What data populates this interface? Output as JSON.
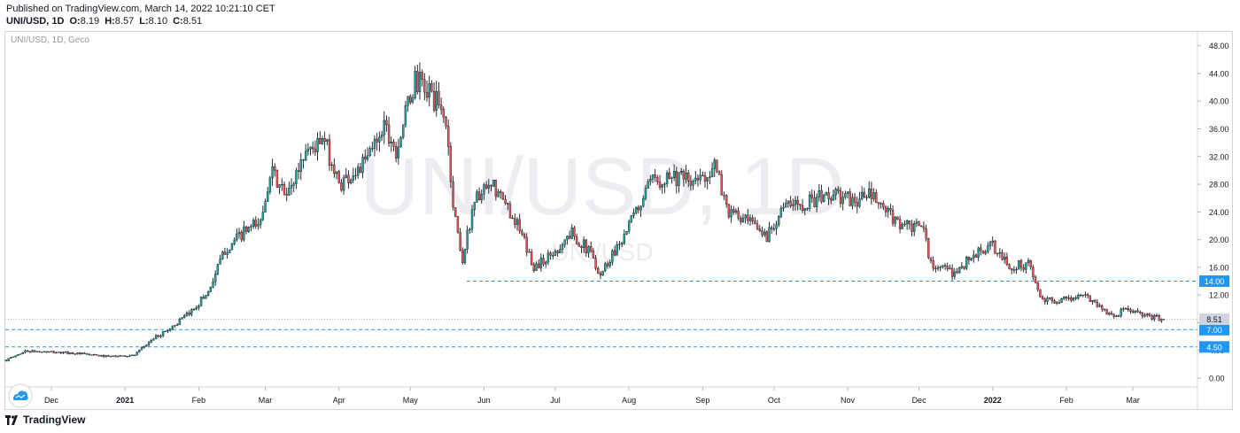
{
  "header": {
    "published": "Published on TradingView.com, March 14, 2022 10:21:10 CET",
    "symbol": "UNI/USD, 1D",
    "o_label": "O:",
    "o_value": "8.19",
    "h_label": "H:",
    "h_value": "8.57",
    "l_label": "L:",
    "l_value": "8.10",
    "c_label": "C:",
    "c_value": "8.51"
  },
  "pane_label": "UNI/USD, 1D, Geco",
  "watermark": {
    "main": "UNI/USD, 1D",
    "sub": "UNI/USD"
  },
  "footer": {
    "brand": "TradingView",
    "logo_icon": "tradingview-logo-icon"
  },
  "colors": {
    "up": "#26a69a",
    "down": "#ef5350",
    "candle": "#131722",
    "hline": "#2196f3",
    "badge": "#2196f3",
    "last_badge": "#d1d4dc"
  },
  "chart_data": {
    "type": "candlestick",
    "title": "UNI/USD, 1D",
    "xlabel": "",
    "ylabel": "",
    "ylim": [
      -1.5,
      50
    ],
    "y_ticks": [
      "0.00",
      "4.00",
      "8.00",
      "12.00",
      "16.00",
      "20.00",
      "24.00",
      "28.00",
      "32.00",
      "36.00",
      "40.00",
      "44.00",
      "48.00"
    ],
    "x_ticks": [
      "Dec",
      "2021",
      "Feb",
      "Mar",
      "Apr",
      "May",
      "Jun",
      "Jul",
      "Aug",
      "Sep",
      "Oct",
      "Nov",
      "Dec",
      "2022",
      "Feb",
      "Mar"
    ],
    "x_ticks_bold": [
      "2021",
      "2022"
    ],
    "price_path": [
      {
        "date": "2020-11-12",
        "close": 2.6
      },
      {
        "date": "2020-11-20",
        "close": 3.9
      },
      {
        "date": "2020-12-10",
        "close": 3.6
      },
      {
        "date": "2020-12-25",
        "close": 3.1
      },
      {
        "date": "2021-01-05",
        "close": 3.3
      },
      {
        "date": "2021-01-12",
        "close": 5.5
      },
      {
        "date": "2021-01-20",
        "close": 7.2
      },
      {
        "date": "2021-01-28",
        "close": 9.3
      },
      {
        "date": "2021-02-05",
        "close": 12.5
      },
      {
        "date": "2021-02-12",
        "close": 18.5
      },
      {
        "date": "2021-02-20",
        "close": 21.0
      },
      {
        "date": "2021-02-27",
        "close": 22.5
      },
      {
        "date": "2021-03-03",
        "close": 30.0
      },
      {
        "date": "2021-03-10",
        "close": 26.0
      },
      {
        "date": "2021-03-18",
        "close": 33.0
      },
      {
        "date": "2021-03-26",
        "close": 34.0
      },
      {
        "date": "2021-04-01",
        "close": 28.0
      },
      {
        "date": "2021-04-12",
        "close": 31.0
      },
      {
        "date": "2021-04-20",
        "close": 37.0
      },
      {
        "date": "2021-04-25",
        "close": 33.0
      },
      {
        "date": "2021-05-03",
        "close": 43.0
      },
      {
        "date": "2021-05-10",
        "close": 41.0
      },
      {
        "date": "2021-05-16",
        "close": 37.0
      },
      {
        "date": "2021-05-19",
        "close": 25.0
      },
      {
        "date": "2021-05-23",
        "close": 17.0
      },
      {
        "date": "2021-05-28",
        "close": 26.0
      },
      {
        "date": "2021-06-05",
        "close": 27.5
      },
      {
        "date": "2021-06-14",
        "close": 23.0
      },
      {
        "date": "2021-06-22",
        "close": 16.0
      },
      {
        "date": "2021-06-30",
        "close": 18.0
      },
      {
        "date": "2021-07-08",
        "close": 21.0
      },
      {
        "date": "2021-07-16",
        "close": 18.0
      },
      {
        "date": "2021-07-20",
        "close": 15.0
      },
      {
        "date": "2021-08-01",
        "close": 22.0
      },
      {
        "date": "2021-08-10",
        "close": 28.0
      },
      {
        "date": "2021-08-18",
        "close": 29.5
      },
      {
        "date": "2021-08-28",
        "close": 28.0
      },
      {
        "date": "2021-09-06",
        "close": 30.5
      },
      {
        "date": "2021-09-12",
        "close": 24.0
      },
      {
        "date": "2021-09-22",
        "close": 22.0
      },
      {
        "date": "2021-09-28",
        "close": 20.5
      },
      {
        "date": "2021-10-04",
        "close": 24.5
      },
      {
        "date": "2021-10-15",
        "close": 25.5
      },
      {
        "date": "2021-10-25",
        "close": 26.5
      },
      {
        "date": "2021-11-04",
        "close": 25.5
      },
      {
        "date": "2021-11-10",
        "close": 26.5
      },
      {
        "date": "2021-11-20",
        "close": 23.0
      },
      {
        "date": "2021-11-28",
        "close": 21.5
      },
      {
        "date": "2021-12-03",
        "close": 22.0
      },
      {
        "date": "2021-12-05",
        "close": 17.0
      },
      {
        "date": "2021-12-15",
        "close": 15.0
      },
      {
        "date": "2021-12-25",
        "close": 18.0
      },
      {
        "date": "2022-01-01",
        "close": 19.0
      },
      {
        "date": "2022-01-08",
        "close": 16.0
      },
      {
        "date": "2022-01-16",
        "close": 16.5
      },
      {
        "date": "2022-01-22",
        "close": 11.0
      },
      {
        "date": "2022-02-01",
        "close": 11.5
      },
      {
        "date": "2022-02-10",
        "close": 11.8
      },
      {
        "date": "2022-02-20",
        "close": 9.0
      },
      {
        "date": "2022-02-27",
        "close": 10.0
      },
      {
        "date": "2022-03-05",
        "close": 9.0
      },
      {
        "date": "2022-03-14",
        "close": 8.51
      }
    ],
    "horizontal_lines": [
      {
        "value": 14.0,
        "label": "14.00"
      },
      {
        "value": 7.0,
        "label": "7.00"
      },
      {
        "value": 4.5,
        "label": "4.50"
      }
    ],
    "last_price": {
      "value": 8.51,
      "label": "8.51"
    }
  }
}
